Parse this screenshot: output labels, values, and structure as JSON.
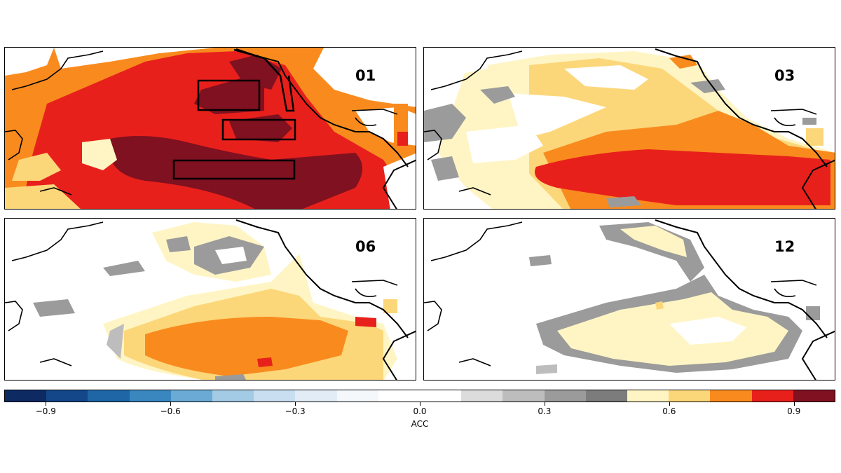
{
  "panels": [
    {
      "id": "p01",
      "label": "01"
    },
    {
      "id": "p03",
      "label": "03"
    },
    {
      "id": "p06",
      "label": "06"
    },
    {
      "id": "p12",
      "label": "12"
    }
  ],
  "colorbar": {
    "title": "ACC",
    "colors": [
      "#0d2a63",
      "#14478a",
      "#1f66a6",
      "#3a86bf",
      "#6aaad5",
      "#a3cbe6",
      "#c9def0",
      "#e2ecf6",
      "#f4f8fb",
      "#ffffff",
      "#ffffff",
      "#dcdcdc",
      "#bdbdbd",
      "#9b9b9b",
      "#7c7c7c",
      "#fff5c4",
      "#fcd77a",
      "#f98b1e",
      "#e8201c",
      "#7f1120"
    ],
    "tick_labels": [
      "−0.9",
      "−0.6",
      "−0.3",
      "0.0",
      "0.3",
      "0.6",
      "0.9"
    ],
    "tick_values": [
      -0.9,
      -0.6,
      -0.3,
      0.0,
      0.3,
      0.6,
      0.9
    ]
  }
}
